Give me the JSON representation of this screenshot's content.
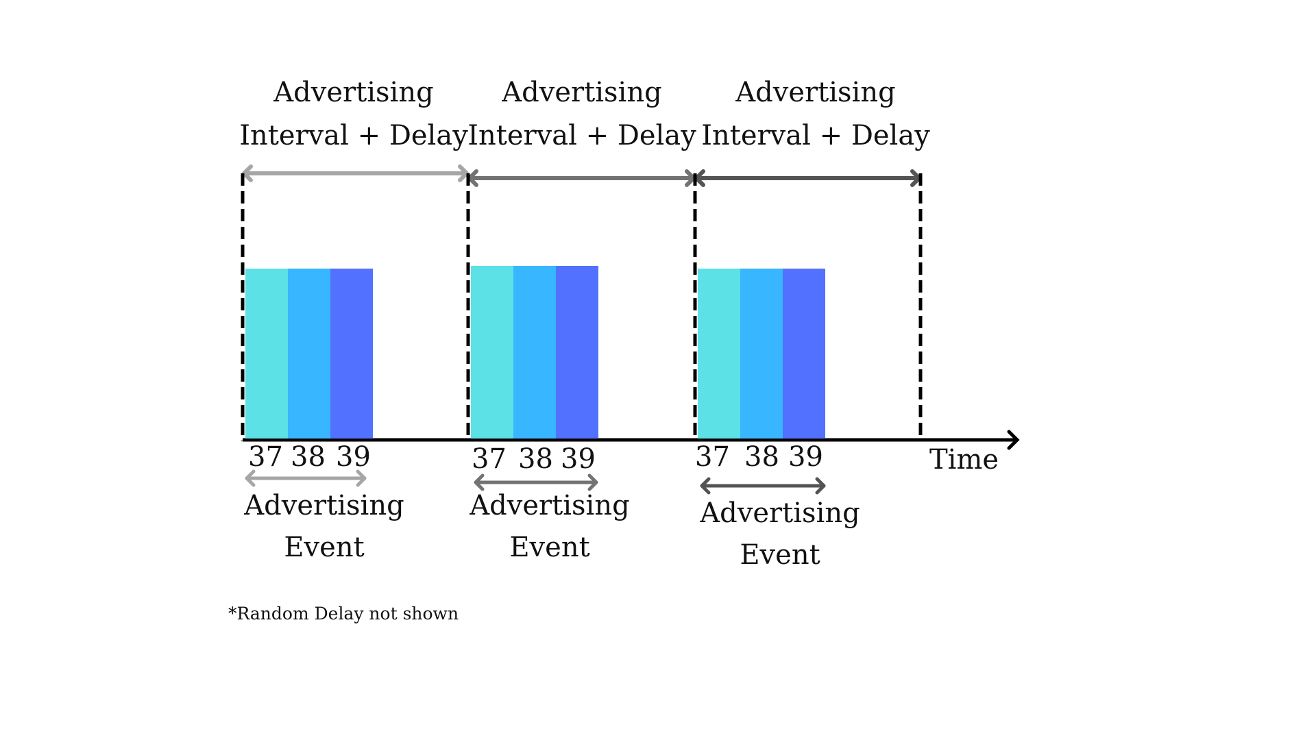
{
  "colors": {
    "channel_37": "#5ce1e6",
    "channel_38": "#38b6ff",
    "channel_39": "#5271ff",
    "arrow_1": "#a6a6a6",
    "arrow_2": "#737373",
    "arrow_3": "#545454",
    "axis": "#000000"
  },
  "intervals": [
    {
      "title_line1": "Advertising",
      "title_line2": "Interval + Delay",
      "channels": [
        "37",
        "38",
        "39"
      ],
      "event_line1": "Advertising",
      "event_line2": "Event"
    },
    {
      "title_line1": "Advertising",
      "title_line2": "Interval + Delay",
      "channels": [
        "37",
        "38",
        "39"
      ],
      "event_line1": "Advertising",
      "event_line2": "Event"
    },
    {
      "title_line1": "Advertising",
      "title_line2": "Interval + Delay",
      "channels": [
        "37",
        "38",
        "39"
      ],
      "event_line1": "Advertising",
      "event_line2": "Event"
    }
  ],
  "axis_label": "Time",
  "footnote": "*Random Delay not shown"
}
